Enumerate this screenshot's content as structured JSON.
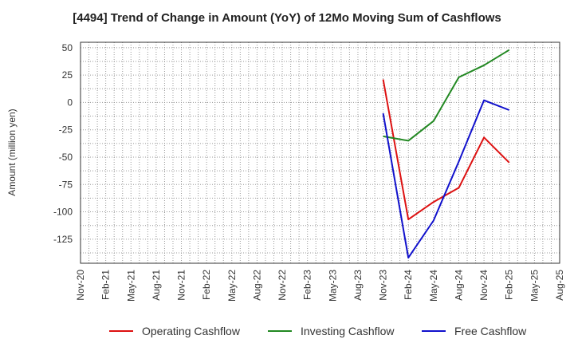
{
  "chart_data": {
    "type": "line",
    "title": "[4494]  Trend of Change in Amount (YoY) of 12Mo Moving Sum of Cashflows",
    "xlabel": "",
    "ylabel": "Amount (million yen)",
    "categories": [
      "Nov-20",
      "Feb-21",
      "May-21",
      "Aug-21",
      "Nov-21",
      "Feb-22",
      "May-22",
      "Aug-22",
      "Nov-22",
      "Feb-23",
      "May-23",
      "Aug-23",
      "Nov-23",
      "Feb-24",
      "May-24",
      "Aug-24",
      "Nov-24",
      "Feb-25",
      "May-25",
      "Aug-25"
    ],
    "ylim": [
      -147,
      55
    ],
    "yticks": [
      50,
      25,
      0,
      -25,
      -50,
      -75,
      -100,
      -125
    ],
    "ytick_labels": [
      "50",
      "25",
      "0",
      "-25",
      "-50",
      "-75",
      "-100",
      "-125"
    ],
    "grid": true,
    "legend_position": "bottom",
    "series": [
      {
        "name": "Operating Cashflow",
        "color": "#dd1111",
        "values": [
          null,
          null,
          null,
          null,
          null,
          null,
          null,
          null,
          null,
          null,
          null,
          null,
          21,
          -107,
          -91,
          -78,
          -32,
          -55,
          null,
          null
        ]
      },
      {
        "name": "Investing Cashflow",
        "color": "#228822",
        "values": [
          null,
          null,
          null,
          null,
          null,
          null,
          null,
          null,
          null,
          null,
          null,
          null,
          -31,
          -35,
          -17,
          23,
          34,
          48,
          null,
          null
        ]
      },
      {
        "name": "Free Cashflow",
        "color": "#1111cc",
        "values": [
          null,
          null,
          null,
          null,
          null,
          null,
          null,
          null,
          null,
          null,
          null,
          null,
          -10,
          -142,
          -108,
          -54,
          2,
          -7,
          null,
          null
        ]
      }
    ]
  }
}
